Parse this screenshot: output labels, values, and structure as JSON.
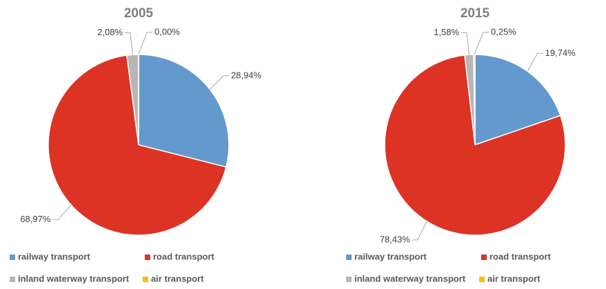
{
  "chart_data": [
    {
      "type": "pie",
      "title": "2005",
      "categories": [
        "railway transport",
        "road transport",
        "inland waterway transport",
        "air transport"
      ],
      "values": [
        28.94,
        68.97,
        2.08,
        0.0
      ],
      "value_labels": [
        "28,94%",
        "68,97%",
        "2,08%",
        "0,00%"
      ],
      "colors": [
        "#6399cc",
        "#dc3324",
        "#b7b7b7",
        "#f5c000"
      ]
    },
    {
      "type": "pie",
      "title": "2015",
      "categories": [
        "railway transport",
        "road transport",
        "inland waterway transport",
        "air transport"
      ],
      "values": [
        19.74,
        78.43,
        1.58,
        0.25
      ],
      "value_labels": [
        "19,74%",
        "78,43%",
        "1,58%",
        "0,25%"
      ],
      "colors": [
        "#6399cc",
        "#dc3324",
        "#b7b7b7",
        "#f5c000"
      ]
    }
  ]
}
